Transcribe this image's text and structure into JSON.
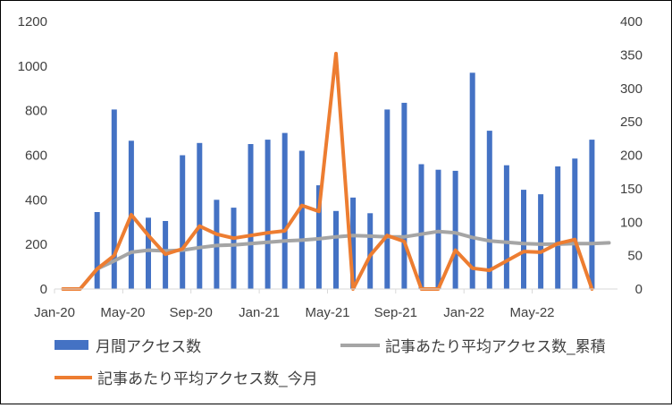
{
  "chart_data": {
    "type": "bar+line",
    "title": "",
    "categories": [
      "Jan-20",
      "Feb-20",
      "Mar-20",
      "Apr-20",
      "May-20",
      "Jun-20",
      "Jul-20",
      "Aug-20",
      "Sep-20",
      "Oct-20",
      "Nov-20",
      "Dec-20",
      "Jan-21",
      "Feb-21",
      "Mar-21",
      "Apr-21",
      "May-21",
      "Jun-21",
      "Jul-21",
      "Aug-21",
      "Sep-21",
      "Oct-21",
      "Nov-21",
      "Dec-21",
      "Jan-22",
      "Feb-22",
      "Mar-22",
      "Apr-22",
      "May-22",
      "Jun-22",
      "Jul-22",
      "Aug-22",
      "Sep-22"
    ],
    "x_tick_labels": [
      "Jan-20",
      "May-20",
      "Sep-20",
      "Jan-21",
      "May-21",
      "Sep-21",
      "Jan-22",
      "May-22"
    ],
    "y_left": {
      "min": 0,
      "max": 1200,
      "ticks": [
        "0",
        "200",
        "400",
        "600",
        "800",
        "1000",
        "1200"
      ]
    },
    "y_right": {
      "min": 0,
      "max": 400,
      "ticks": [
        "0",
        "50",
        "100",
        "150",
        "200",
        "250",
        "300",
        "350",
        "400"
      ]
    },
    "grid": false,
    "legend_placement": "bottom",
    "series": [
      {
        "name": "月間アクセス数",
        "kind": "bar",
        "axis": "left",
        "color": "#4472C4",
        "values": [
          0,
          0,
          345,
          805,
          665,
          320,
          305,
          600,
          655,
          400,
          365,
          650,
          670,
          700,
          620,
          465,
          350,
          410,
          340,
          805,
          835,
          560,
          535,
          530,
          970,
          710,
          555,
          445,
          425,
          550,
          585,
          670,
          0
        ]
      },
      {
        "name": "記事あたり平均アクセス数_累積",
        "kind": "line",
        "axis": "right",
        "color": "#A5A5A5",
        "values": [
          0,
          0,
          30,
          42,
          55,
          58,
          57,
          58,
          62,
          65,
          66,
          68,
          70,
          72,
          73,
          75,
          78,
          80,
          79,
          78,
          78,
          82,
          86,
          84,
          77,
          72,
          70,
          68,
          67,
          67,
          68,
          68,
          69
        ]
      },
      {
        "name": "記事あたり平均アクセス数_今月",
        "kind": "line",
        "axis": "right",
        "color": "#ED7D31",
        "values": [
          0,
          0,
          30,
          50,
          111,
          80,
          52,
          60,
          94,
          82,
          76,
          80,
          84,
          87,
          125,
          116,
          352,
          0,
          50,
          80,
          71,
          0,
          0,
          58,
          31,
          28,
          42,
          56,
          55,
          68,
          74,
          0,
          null
        ]
      }
    ]
  }
}
